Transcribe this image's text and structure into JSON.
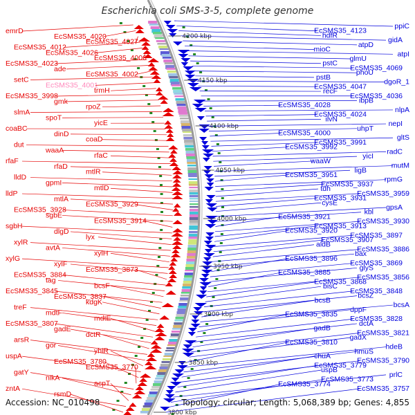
{
  "title": "Escherichia coli SMS-3-5, complete genome",
  "footer": {
    "accession": "Accession: NC_010498",
    "summary": "Topology: circular; Length: 5,068,389 bp; Genes: 4,855"
  },
  "colors": {
    "forward_strand": "#e60000",
    "reverse_strand": "#0000dd",
    "highlight_label": "#ff88bb",
    "backbone": "#999999",
    "tick": "#228822"
  },
  "ticks": [
    "4200 kbp",
    "4150 kbp",
    "4100 kbp",
    "4050 kbp",
    "4000 kbp",
    "3950 kbp",
    "3900 kbp",
    "3850 kbp",
    "3800 kbp"
  ],
  "left_labels": [
    "emrD",
    "EcSMS35_4020",
    "EcSMS35_4027",
    "EcSMS35_4012",
    "EcSMS35_4026",
    "EcSMS35_4006",
    "EcSMS35_4023",
    "ade",
    "EcSMS35_4002",
    "setC",
    "EcSMS35_4001",
    "trmH",
    "EcSMS35_3998",
    "gmk",
    "rpoZ",
    "slmA",
    "spoT",
    "yicE",
    "coaBC",
    "dinD",
    "coaD",
    "dut",
    "waaA",
    "rfaC",
    "rfaF",
    "rfaD",
    "mtlR",
    "lldD",
    "gpmI",
    "mtlD",
    "lldP",
    "mtlA",
    "EcSMS35_3929",
    "EcSMS35_3928",
    "sgbE",
    "EcSMS35_3914",
    "sgbH",
    "dlgD",
    "lyx",
    "xylR",
    "avtA",
    "xylH",
    "xylG",
    "xylF",
    "EcSMS35_3873",
    "EcSMS35_3884",
    "tag",
    "bcsF",
    "EcSMS35_3845",
    "EcSMS35_3837",
    "kdgK",
    "treF",
    "mdtF",
    "mdtE",
    "EcSMS35_3807",
    "gadE",
    "dctR",
    "arsR",
    "gor",
    "yhiR",
    "uspA",
    "EcSMS35_3780",
    "EcSMS35_3770",
    "gatY",
    "nikA",
    "acpT",
    "zntA",
    "rsmD"
  ],
  "right_labels": [
    "ppiC",
    "EcSMS35_4123",
    "hdfR",
    "gidA",
    "atpD",
    "mioC",
    "atpI",
    "glmU",
    "pstC",
    "EcSMS35_4069",
    "phoU",
    "pstB",
    "dgoR_1",
    "EcSMS35_4047",
    "recF",
    "EcSMS35_4036",
    "ibpB",
    "EcSMS35_4028",
    "nlpA",
    "EcSMS35_4024",
    "ilvN",
    "nepI",
    "uhpT",
    "EcSMS35_4000",
    "gltS",
    "EcSMS35_3991",
    "EcSMS35_3992",
    "radC",
    "yicI",
    "waaW",
    "mutM",
    "ligB",
    "EcSMS35_3951",
    "rpmG",
    "EcSMS35_3937",
    "tdh",
    "EcSMS35_3959",
    "EcSMS35_3931",
    "cysE",
    "gpsA",
    "kbl",
    "EcSMS35_3921",
    "EcSMS35_3930",
    "EcSMS35_3913",
    "EcSMS35_3920",
    "EcSMS35_3897",
    "EcSMS35_3907",
    "aldB",
    "EcSMS35_3886",
    "bax",
    "EcSMS35_3896",
    "EcSMS35_3869",
    "glyS",
    "EcSMS35_3885",
    "EcSMS35_3856",
    "EcSMS35_3868",
    "bisC",
    "EcSMS35_3848",
    "bcsZ",
    "bcsB",
    "bcsA",
    "dppF",
    "EcSMS35_3835",
    "EcSMS35_3828",
    "dctA",
    "gadB",
    "EcSMS35_3821",
    "gadX",
    "EcSMS35_3810",
    "hdeB",
    "hmuS",
    "chuA",
    "EcSMS35_3790",
    "EcSMS35_3779",
    "uspB",
    "prlC",
    "EcSMS35_3773",
    "EcSMS35_3774",
    "EcSMS35_3757"
  ]
}
